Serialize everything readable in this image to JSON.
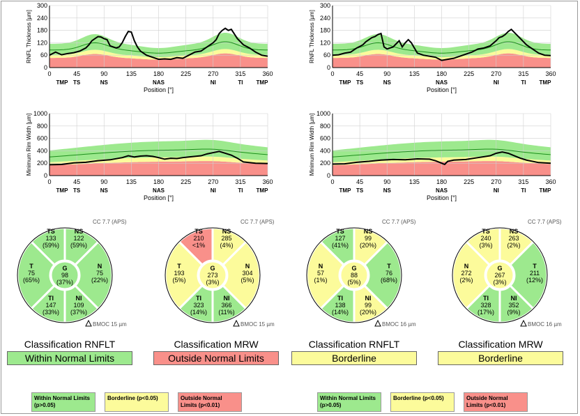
{
  "colors": {
    "green": "#9de98e",
    "yellow": "#fcfb9b",
    "red": "#f9908a",
    "greenLine": "#1c8e1c",
    "grey": "#c8c8c8"
  },
  "x_ticks": [
    0,
    45,
    90,
    135,
    180,
    225,
    270,
    315,
    360
  ],
  "sector_labels": [
    "TMP",
    "TS",
    "NS",
    "NAS",
    "NI",
    "TI",
    "TMP"
  ],
  "xlabel": "Position [°]",
  "rnflt_ylabel": "RNFL Thickness [µm]",
  "mrw_ylabel": "Minimum Rim Width [µm]",
  "rnflt_yticks": [
    0,
    60,
    120,
    180,
    240,
    300
  ],
  "mrw_yticks": [
    0,
    200,
    400,
    600,
    800,
    1000
  ],
  "chart_data": [
    {
      "type": "line",
      "id": "left-rnflt",
      "ylabel": "RNFL Thickness [µm]",
      "xlabel": "Position [°]",
      "ylim": [
        0,
        300
      ],
      "xlim": [
        0,
        360
      ],
      "series": [
        {
          "x": [
            0,
            10,
            20,
            30,
            40,
            50,
            60,
            65,
            70,
            75,
            80,
            85,
            90,
            95,
            100,
            105,
            110,
            115,
            120,
            125,
            130,
            135,
            140,
            145,
            150,
            160,
            170,
            180,
            190,
            200,
            210,
            220,
            230,
            240,
            250,
            260,
            270,
            275,
            280,
            285,
            290,
            295,
            300,
            310,
            320,
            330,
            340,
            350,
            360
          ],
          "y": [
            60,
            75,
            62,
            68,
            72,
            80,
            95,
            110,
            130,
            140,
            150,
            148,
            140,
            135,
            105,
            100,
            95,
            100,
            120,
            150,
            175,
            172,
            130,
            100,
            80,
            60,
            50,
            40,
            42,
            40,
            48,
            45,
            60,
            75,
            80,
            100,
            120,
            135,
            165,
            180,
            190,
            180,
            185,
            140,
            110,
            95,
            75,
            60,
            55
          ]
        }
      ]
    },
    {
      "type": "line",
      "id": "right-rnflt",
      "ylabel": "RNFL Thickness [µm]",
      "xlabel": "Position [°]",
      "ylim": [
        0,
        300
      ],
      "xlim": [
        0,
        360
      ],
      "series": [
        {
          "x": [
            0,
            10,
            20,
            30,
            40,
            50,
            55,
            60,
            65,
            70,
            75,
            80,
            85,
            90,
            95,
            100,
            105,
            110,
            115,
            120,
            125,
            130,
            135,
            140,
            150,
            160,
            170,
            180,
            190,
            200,
            210,
            220,
            230,
            240,
            250,
            260,
            270,
            275,
            280,
            285,
            290,
            295,
            300,
            310,
            320,
            330,
            340,
            350,
            360
          ],
          "y": [
            60,
            62,
            70,
            75,
            95,
            110,
            125,
            135,
            145,
            150,
            160,
            165,
            100,
            90,
            95,
            100,
            115,
            130,
            100,
            120,
            135,
            120,
            95,
            70,
            60,
            55,
            50,
            35,
            40,
            45,
            55,
            65,
            75,
            90,
            95,
            105,
            130,
            145,
            150,
            160,
            175,
            185,
            170,
            140,
            110,
            90,
            70,
            60,
            58
          ]
        }
      ]
    },
    {
      "type": "line",
      "id": "left-mrw",
      "ylabel": "Minimum Rim Width [µm]",
      "xlabel": "Position [°]",
      "ylim": [
        0,
        1000
      ],
      "xlim": [
        0,
        360
      ],
      "series": [
        {
          "x": [
            0,
            20,
            40,
            60,
            80,
            100,
            120,
            130,
            140,
            150,
            160,
            170,
            180,
            190,
            200,
            210,
            220,
            230,
            240,
            250,
            260,
            270,
            280,
            290,
            300,
            310,
            320,
            340,
            360
          ],
          "y": [
            175,
            180,
            205,
            215,
            240,
            255,
            290,
            320,
            300,
            315,
            320,
            310,
            290,
            265,
            280,
            275,
            290,
            300,
            310,
            320,
            350,
            370,
            390,
            360,
            330,
            280,
            220,
            200,
            195
          ]
        }
      ]
    },
    {
      "type": "line",
      "id": "right-mrw",
      "ylabel": "Minimum Rim Width [µm]",
      "xlabel": "Position [°]",
      "ylim": [
        0,
        1000
      ],
      "xlim": [
        0,
        360
      ],
      "series": [
        {
          "x": [
            0,
            20,
            40,
            60,
            80,
            100,
            120,
            140,
            160,
            170,
            180,
            185,
            190,
            200,
            220,
            240,
            260,
            270,
            280,
            290,
            300,
            310,
            320,
            340,
            360
          ],
          "y": [
            185,
            190,
            215,
            230,
            250,
            260,
            255,
            270,
            265,
            240,
            200,
            180,
            230,
            250,
            260,
            290,
            320,
            360,
            380,
            360,
            320,
            280,
            250,
            210,
            200
          ]
        }
      ]
    }
  ],
  "panels": [
    {
      "cc": "CC 7.7 (APS)",
      "bmoc": "BMOC 15 µm",
      "sectors": [
        {
          "key": "TS",
          "code": "TS",
          "val": "133",
          "pct": "(59%)",
          "cls": "green"
        },
        {
          "key": "NS",
          "code": "NS",
          "val": "122",
          "pct": "(59%)",
          "cls": "green"
        },
        {
          "key": "L",
          "code": "T",
          "val": "75",
          "pct": "(65%)",
          "cls": "green"
        },
        {
          "key": "R",
          "code": "N",
          "val": "75",
          "pct": "(22%)",
          "cls": "green"
        },
        {
          "key": "TI",
          "code": "TI",
          "val": "147",
          "pct": "(33%)",
          "cls": "green"
        },
        {
          "key": "NI",
          "code": "NI",
          "val": "109",
          "pct": "(37%)",
          "cls": "green"
        },
        {
          "key": "G",
          "code": "G",
          "val": "98",
          "pct": "(37%)",
          "cls": "green"
        }
      ]
    },
    {
      "cc": "CC 7.7 (APS)",
      "bmoc": "BMOC 15 µm",
      "sectors": [
        {
          "key": "TS",
          "code": "TS",
          "val": "210",
          "pct": "<1%",
          "cls": "red"
        },
        {
          "key": "NS",
          "code": "NS",
          "val": "285",
          "pct": "(4%)",
          "cls": "yellow"
        },
        {
          "key": "L",
          "code": "T",
          "val": "193",
          "pct": "(5%)",
          "cls": "yellow"
        },
        {
          "key": "R",
          "code": "N",
          "val": "304",
          "pct": "(5%)",
          "cls": "yellow"
        },
        {
          "key": "TI",
          "code": "TI",
          "val": "323",
          "pct": "(14%)",
          "cls": "green"
        },
        {
          "key": "NI",
          "code": "NI",
          "val": "366",
          "pct": "(11%)",
          "cls": "green"
        },
        {
          "key": "G",
          "code": "G",
          "val": "273",
          "pct": "(3%)",
          "cls": "yellow"
        }
      ]
    },
    {
      "cc": "CC 7.7 (APS)",
      "bmoc": "BMOC 16 µm",
      "sectors": [
        {
          "key": "TS",
          "code": "TS",
          "val": "127",
          "pct": "(41%)",
          "cls": "green"
        },
        {
          "key": "NS",
          "code": "NS",
          "val": "99",
          "pct": "(20%)",
          "cls": "yellow"
        },
        {
          "key": "L",
          "code": "N",
          "val": "57",
          "pct": "(1%)",
          "cls": "yellow"
        },
        {
          "key": "R",
          "code": "T",
          "val": "76",
          "pct": "(68%)",
          "cls": "green"
        },
        {
          "key": "TI",
          "code": "TI",
          "val": "138",
          "pct": "(14%)",
          "cls": "green"
        },
        {
          "key": "NI",
          "code": "NI",
          "val": "99",
          "pct": "(20%)",
          "cls": "yellow"
        },
        {
          "key": "G",
          "code": "G",
          "val": "88",
          "pct": "(5%)",
          "cls": "yellow"
        }
      ]
    },
    {
      "cc": "CC 7.7 (APS)",
      "bmoc": "BMOC 16 µm",
      "sectors": [
        {
          "key": "TS",
          "code": "TS",
          "val": "240",
          "pct": "(3%)",
          "cls": "yellow"
        },
        {
          "key": "NS",
          "code": "NS",
          "val": "263",
          "pct": "(2%)",
          "cls": "yellow"
        },
        {
          "key": "L",
          "code": "N",
          "val": "272",
          "pct": "(2%)",
          "cls": "yellow"
        },
        {
          "key": "R",
          "code": "T",
          "val": "211",
          "pct": "(12%)",
          "cls": "green"
        },
        {
          "key": "TI",
          "code": "TI",
          "val": "328",
          "pct": "(17%)",
          "cls": "green"
        },
        {
          "key": "NI",
          "code": "NI",
          "val": "352",
          "pct": "(9%)",
          "cls": "green"
        },
        {
          "key": "G",
          "code": "G",
          "val": "267",
          "pct": "(3%)",
          "cls": "yellow"
        }
      ]
    }
  ],
  "classification": {
    "rnflt_title": "Classification RNFLT",
    "mrw_title": "Classification MRW",
    "left_rnflt": "Within Normal Limits",
    "left_mrw": "Outside Normal Limits",
    "right_rnflt": "Borderline",
    "right_mrw": "Borderline"
  },
  "legend": {
    "within": "Within Normal Limits (p>0.05)",
    "border": "Borderline (p<0.05)",
    "outside": "Outside Normal Limits (p<0.01)"
  }
}
